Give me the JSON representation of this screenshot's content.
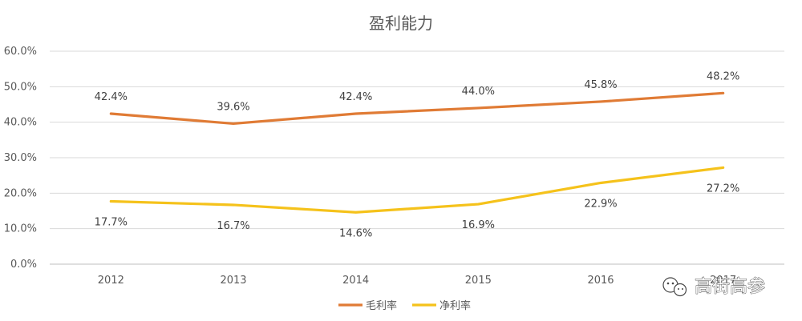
{
  "chart_data": {
    "type": "line",
    "title": "盈利能力",
    "categories": [
      "2012",
      "2013",
      "2014",
      "2015",
      "2016",
      "2017"
    ],
    "ylim": [
      0,
      60
    ],
    "yticks": [
      "0.0%",
      "10.0%",
      "20.0%",
      "30.0%",
      "40.0%",
      "50.0%",
      "60.0%"
    ],
    "grid": true,
    "legend_position": "bottom",
    "series": [
      {
        "name": "毛利率",
        "color": "#E07B35",
        "values": [
          42.4,
          39.6,
          42.4,
          44.0,
          45.8,
          48.2
        ],
        "labels": [
          "42.4%",
          "39.6%",
          "42.4%",
          "44.0%",
          "45.8%",
          "48.2%"
        ]
      },
      {
        "name": "净利率",
        "color": "#F5C21B",
        "values": [
          17.7,
          16.7,
          14.6,
          16.9,
          22.9,
          27.2
        ],
        "labels": [
          "17.7%",
          "16.7%",
          "14.6%",
          "16.9%",
          "22.9%",
          "27.2%"
        ]
      }
    ]
  },
  "watermark": {
    "text": "高街高参",
    "icon": "wechat-icon"
  }
}
